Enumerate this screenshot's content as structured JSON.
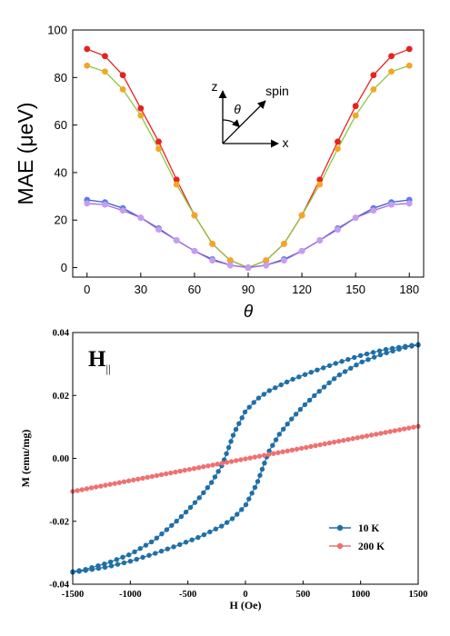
{
  "chart_data": [
    {
      "type": "line",
      "ylabel": "MAE (μeV)",
      "xlabel": "θ",
      "xlim": [
        -8,
        188
      ],
      "ylim": [
        -4,
        100
      ],
      "x_ticks": [
        0,
        30,
        60,
        90,
        120,
        150,
        180
      ],
      "y_ticks": [
        0,
        20,
        40,
        60,
        80,
        100
      ],
      "grid": false,
      "legend": "none",
      "x": [
        0,
        10,
        20,
        30,
        40,
        50,
        60,
        70,
        80,
        90,
        100,
        110,
        120,
        130,
        140,
        150,
        160,
        170,
        180
      ],
      "series": [
        {
          "color": "#e8211f",
          "marker_color": "#e8211f",
          "values": [
            92,
            89,
            81,
            67,
            53,
            37,
            22,
            10,
            3,
            0,
            3,
            10,
            22,
            37,
            53,
            68,
            81,
            89,
            92
          ]
        },
        {
          "color": "#8cc63f",
          "marker_color": "#f5a623",
          "values": [
            85,
            82.5,
            75,
            64,
            50,
            35,
            22,
            10,
            3,
            0,
            3,
            10,
            22,
            35,
            50,
            64,
            75,
            82.5,
            85
          ]
        },
        {
          "color": "#3a56d4",
          "marker_color": "#5a7bef",
          "values": [
            28.5,
            27.5,
            25,
            21,
            16.5,
            11.5,
            7,
            3.5,
            1,
            0,
            1,
            3.5,
            7,
            11.5,
            16.5,
            21,
            25,
            27.5,
            28.5
          ]
        },
        {
          "color": "#a66ad8",
          "marker_color": "#c89cf0",
          "values": [
            27,
            26.5,
            24,
            21,
            16,
            11.5,
            7,
            3,
            1,
            0,
            1,
            3,
            7,
            11.5,
            16,
            21,
            24,
            26.5,
            27
          ]
        }
      ],
      "annotations": {
        "axis_z": "z",
        "axis_x": "x",
        "angle": "θ",
        "vector": "spin"
      }
    },
    {
      "type": "line",
      "annotation_main": "H",
      "annotation_sub": "||",
      "xlabel": "H (Oe)",
      "ylabel": "M (emu/mg)",
      "xlim": [
        -1500,
        1500
      ],
      "ylim": [
        -0.04,
        0.04
      ],
      "x_ticks": [
        -1500,
        -1000,
        -500,
        0,
        500,
        1000,
        1500
      ],
      "y_ticks": [
        -0.04,
        -0.02,
        0.0,
        0.02,
        0.04
      ],
      "y_tick_labels": [
        "-0.04",
        "-0.02",
        "0.00",
        "0.02",
        "0.04"
      ],
      "grid": false,
      "legend": "bottom-right",
      "series": [
        {
          "name": "10 K",
          "color": "#1f6fa8",
          "branches": [
            {
              "x": [
                -1500,
                -1400,
                -1200,
                -1000,
                -800,
                -600,
                -400,
                -200,
                -100,
                0,
                100,
                150,
                200,
                300,
                400,
                500,
                600,
                700,
                800,
                1000,
                1200,
                1400,
                1500
              ],
              "y": [
                -0.0362,
                -0.0357,
                -0.0345,
                -0.0327,
                -0.0304,
                -0.0278,
                -0.025,
                -0.0214,
                -0.0188,
                -0.015,
                -0.008,
                -0.003,
                0.002,
                0.008,
                0.0125,
                0.0165,
                0.02,
                0.0232,
                0.0262,
                0.0305,
                0.0333,
                0.0354,
                0.036
              ]
            },
            {
              "x": [
                1500,
                1400,
                1200,
                1000,
                800,
                600,
                400,
                200,
                100,
                0,
                -100,
                -150,
                -200,
                -300,
                -400,
                -500,
                -600,
                -700,
                -800,
                -1000,
                -1200,
                -1400,
                -1500
              ],
              "y": [
                0.0362,
                0.0357,
                0.0345,
                0.0327,
                0.0304,
                0.0278,
                0.025,
                0.0214,
                0.0188,
                0.015,
                0.008,
                0.003,
                -0.002,
                -0.008,
                -0.0125,
                -0.0165,
                -0.02,
                -0.0232,
                -0.0262,
                -0.0305,
                -0.0333,
                -0.0354,
                -0.036
              ]
            }
          ]
        },
        {
          "name": "200 K",
          "color": "#f07070",
          "branches": [
            {
              "x": [
                -1500,
                1500
              ],
              "y": [
                -0.0105,
                0.0102
              ]
            }
          ]
        }
      ]
    }
  ]
}
